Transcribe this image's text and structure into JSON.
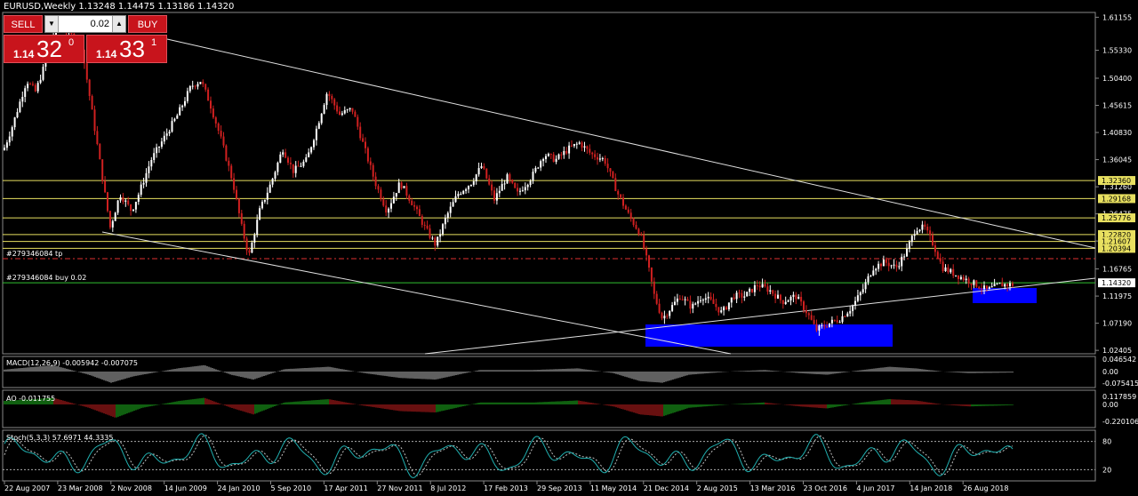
{
  "header": {
    "title": "EURUSD,Weekly  1.13248 1.14475 1.13186 1.14320"
  },
  "trade_panel": {
    "sell_label": "SELL",
    "buy_label": "BUY",
    "lot": "0.02",
    "sell_price": {
      "prefix": "1.14",
      "big": "32",
      "sup": "0"
    },
    "buy_price": {
      "prefix": "1.14",
      "big": "33",
      "sup": "1"
    }
  },
  "price_axis": {
    "ticks": [
      "1.61155",
      "1.55330",
      "1.50400",
      "1.45615",
      "1.40830",
      "1.36045",
      "1.31260",
      "1.26475",
      "1.21690",
      "1.16765",
      "1.11975",
      "1.07190",
      "1.02405"
    ]
  },
  "price_labels": {
    "yellow": [
      "1.32360",
      "1.29168",
      "1.25776",
      "1.22820",
      "1.21607",
      "1.20394"
    ],
    "current": "1.14320"
  },
  "order_lines": {
    "tp": "#279346084 tp",
    "buy": "#279346084 buy 0.02"
  },
  "indicators": {
    "macd": {
      "label": "MACD(12,26,9) -0.005942 -0.007075",
      "ticks": [
        "0.046542",
        "0.00",
        "-0.075415"
      ]
    },
    "ao": {
      "label": "AO -0.011755",
      "ticks": [
        "0.117859",
        "0.00",
        "-0.220106"
      ]
    },
    "stoch": {
      "label": "Stoch(5,3,3) 57.6971 44.3335",
      "ticks": [
        "80",
        "20"
      ]
    }
  },
  "time_axis": [
    "22 Aug 2007",
    "23 Mar 2008",
    "2 Nov 2008",
    "14 Jun 2009",
    "24 Jan 2010",
    "5 Sep 2010",
    "17 Apr 2011",
    "27 Nov 2011",
    "8 Jul 2012",
    "17 Feb 2013",
    "29 Sep 2013",
    "11 May 2014",
    "21 Dec 2014",
    "2 Aug 2015",
    "13 Mar 2016",
    "23 Oct 2016",
    "4 Jun 2017",
    "14 Jan 2018",
    "26 Aug 2018"
  ],
  "colors": {
    "background": "#000000",
    "bull": "#ffffff",
    "bear": "#d02020",
    "level_line": "#e8e060",
    "trendline": "#e0e0e0",
    "zone": "#0000ff",
    "tp_line": "#e03030",
    "order_line": "#30c030",
    "macd_hist": "#c0c0c0",
    "ao_up": "#20c020",
    "ao_down": "#d02020",
    "stoch_main": "#20b0b0"
  },
  "price_path": [
    [
      0,
      1.36
    ],
    [
      14,
      1.42
    ],
    [
      30,
      1.5
    ],
    [
      40,
      1.48
    ],
    [
      55,
      1.55
    ],
    [
      60,
      1.58
    ],
    [
      68,
      1.6
    ],
    [
      80,
      1.58
    ],
    [
      92,
      1.56
    ],
    [
      100,
      1.48
    ],
    [
      110,
      1.38
    ],
    [
      118,
      1.3
    ],
    [
      124,
      1.24
    ],
    [
      135,
      1.3
    ],
    [
      148,
      1.27
    ],
    [
      156,
      1.3
    ],
    [
      170,
      1.36
    ],
    [
      185,
      1.4
    ],
    [
      200,
      1.44
    ],
    [
      215,
      1.49
    ],
    [
      226,
      1.5
    ],
    [
      236,
      1.46
    ],
    [
      248,
      1.4
    ],
    [
      262,
      1.32
    ],
    [
      272,
      1.24
    ],
    [
      280,
      1.19
    ],
    [
      292,
      1.27
    ],
    [
      305,
      1.32
    ],
    [
      318,
      1.38
    ],
    [
      330,
      1.34
    ],
    [
      345,
      1.36
    ],
    [
      357,
      1.42
    ],
    [
      368,
      1.48
    ],
    [
      382,
      1.44
    ],
    [
      396,
      1.45
    ],
    [
      410,
      1.38
    ],
    [
      422,
      1.32
    ],
    [
      435,
      1.27
    ],
    [
      450,
      1.32
    ],
    [
      465,
      1.28
    ],
    [
      478,
      1.24
    ],
    [
      490,
      1.21
    ],
    [
      502,
      1.26
    ],
    [
      515,
      1.3
    ],
    [
      530,
      1.32
    ],
    [
      542,
      1.35
    ],
    [
      556,
      1.29
    ],
    [
      570,
      1.33
    ],
    [
      582,
      1.3
    ],
    [
      598,
      1.33
    ],
    [
      612,
      1.37
    ],
    [
      625,
      1.36
    ],
    [
      640,
      1.38
    ],
    [
      652,
      1.39
    ],
    [
      665,
      1.37
    ],
    [
      680,
      1.36
    ],
    [
      695,
      1.3
    ],
    [
      708,
      1.26
    ],
    [
      720,
      1.23
    ],
    [
      728,
      1.18
    ],
    [
      736,
      1.12
    ],
    [
      745,
      1.08
    ],
    [
      755,
      1.1
    ],
    [
      765,
      1.12
    ],
    [
      778,
      1.1
    ],
    [
      790,
      1.12
    ],
    [
      800,
      1.11
    ],
    [
      812,
      1.09
    ],
    [
      825,
      1.12
    ],
    [
      838,
      1.12
    ],
    [
      852,
      1.14
    ],
    [
      866,
      1.13
    ],
    [
      880,
      1.11
    ],
    [
      895,
      1.12
    ],
    [
      908,
      1.09
    ],
    [
      918,
      1.06
    ],
    [
      930,
      1.07
    ],
    [
      945,
      1.08
    ],
    [
      958,
      1.1
    ],
    [
      970,
      1.13
    ],
    [
      982,
      1.17
    ],
    [
      995,
      1.18
    ],
    [
      1008,
      1.17
    ],
    [
      1020,
      1.2
    ],
    [
      1030,
      1.24
    ],
    [
      1040,
      1.24
    ],
    [
      1050,
      1.21
    ],
    [
      1060,
      1.17
    ],
    [
      1072,
      1.16
    ],
    [
      1085,
      1.15
    ],
    [
      1098,
      1.14
    ],
    [
      1110,
      1.13
    ],
    [
      1125,
      1.14
    ],
    [
      1138,
      1.14
    ]
  ],
  "macd_path": [
    [
      0,
      0.01
    ],
    [
      60,
      0.04
    ],
    [
      100,
      -0.02
    ],
    [
      125,
      -0.07
    ],
    [
      150,
      -0.03
    ],
    [
      200,
      0.02
    ],
    [
      230,
      0.04
    ],
    [
      260,
      -0.02
    ],
    [
      285,
      -0.05
    ],
    [
      320,
      0.015
    ],
    [
      370,
      0.03
    ],
    [
      410,
      -0.01
    ],
    [
      450,
      -0.04
    ],
    [
      490,
      -0.05
    ],
    [
      540,
      0.01
    ],
    [
      600,
      0.01
    ],
    [
      650,
      0.02
    ],
    [
      690,
      -0.01
    ],
    [
      720,
      -0.06
    ],
    [
      745,
      -0.07
    ],
    [
      775,
      -0.02
    ],
    [
      820,
      0.0
    ],
    [
      860,
      0.01
    ],
    [
      900,
      -0.01
    ],
    [
      930,
      -0.02
    ],
    [
      970,
      0.01
    ],
    [
      1000,
      0.03
    ],
    [
      1030,
      0.02
    ],
    [
      1060,
      0.0
    ],
    [
      1090,
      -0.01
    ],
    [
      1140,
      -0.006
    ]
  ],
  "ao_path": [
    [
      0,
      0.05
    ],
    [
      60,
      0.1
    ],
    [
      100,
      -0.05
    ],
    [
      130,
      -0.2
    ],
    [
      160,
      -0.05
    ],
    [
      200,
      0.05
    ],
    [
      230,
      0.1
    ],
    [
      260,
      -0.05
    ],
    [
      285,
      -0.15
    ],
    [
      320,
      0.03
    ],
    [
      370,
      0.08
    ],
    [
      410,
      -0.02
    ],
    [
      450,
      -0.1
    ],
    [
      490,
      -0.12
    ],
    [
      540,
      0.03
    ],
    [
      600,
      0.03
    ],
    [
      650,
      0.06
    ],
    [
      690,
      -0.03
    ],
    [
      720,
      -0.15
    ],
    [
      745,
      -0.18
    ],
    [
      775,
      -0.05
    ],
    [
      820,
      0.0
    ],
    [
      860,
      0.03
    ],
    [
      900,
      -0.03
    ],
    [
      930,
      -0.06
    ],
    [
      970,
      0.03
    ],
    [
      1000,
      0.08
    ],
    [
      1030,
      0.06
    ],
    [
      1060,
      0.0
    ],
    [
      1090,
      -0.03
    ],
    [
      1140,
      -0.01
    ]
  ]
}
